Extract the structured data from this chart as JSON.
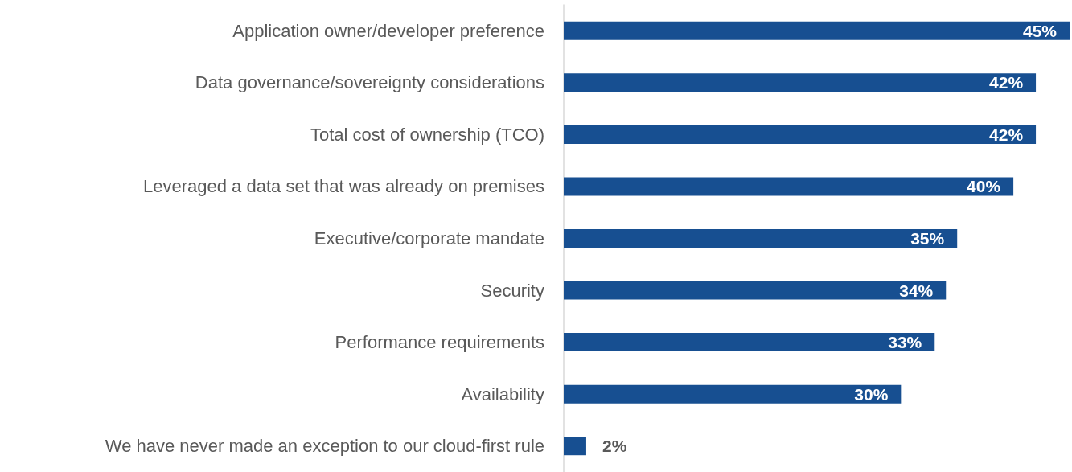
{
  "chart_data": {
    "type": "bar",
    "orientation": "horizontal",
    "categories": [
      "Application owner/developer preference",
      "Data governance/sovereignty considerations",
      "Total cost of ownership (TCO)",
      "Leveraged a data set that was already on premises",
      "Executive/corporate mandate",
      "Security",
      "Performance requirements",
      "Availability",
      "We have never made an exception to our cloud-first rule"
    ],
    "values": [
      45,
      42,
      42,
      40,
      35,
      34,
      33,
      30,
      2
    ],
    "value_labels": [
      "45%",
      "42%",
      "42%",
      "40%",
      "35%",
      "34%",
      "33%",
      "30%",
      "2%"
    ],
    "color": "#174f91",
    "grid": false
  }
}
